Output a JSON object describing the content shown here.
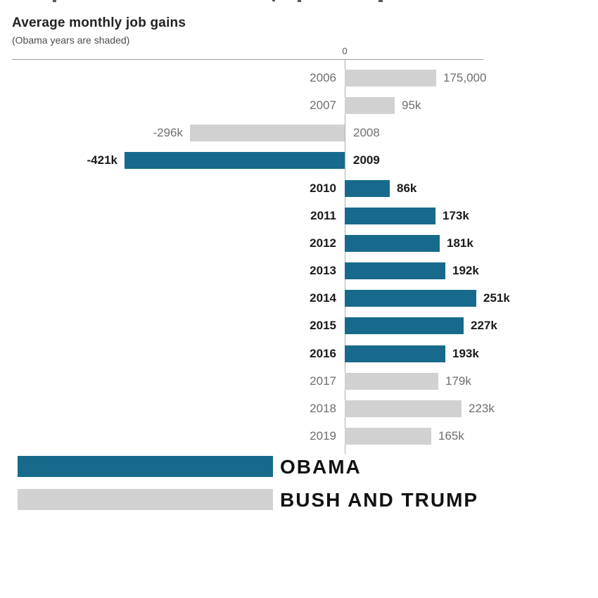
{
  "colors": {
    "obama": "#176a8c",
    "bush_trump": "#d1d1d1",
    "obama_text": "#1a1a1a",
    "other_text": "#6e6e6e"
  },
  "chart_data": {
    "type": "bar",
    "orientation": "horizontal",
    "title": "Average monthly job gains",
    "subtitle": "(Obama years are shaded)",
    "axis": {
      "zero_label": "0",
      "unit_hint": "k = thousands",
      "xlim_k": [
        -450,
        300
      ],
      "grid": "zero-line-only"
    },
    "categories": [
      "2006",
      "2007",
      "2008",
      "2009",
      "2010",
      "2011",
      "2012",
      "2013",
      "2014",
      "2015",
      "2016",
      "2017",
      "2018",
      "2019"
    ],
    "values_k": [
      175,
      95,
      -296,
      -421,
      86,
      173,
      181,
      192,
      251,
      227,
      193,
      179,
      223,
      165
    ],
    "rows": [
      {
        "year": "2006",
        "value": 175,
        "value_label": "175,000",
        "group": "bush_trump"
      },
      {
        "year": "2007",
        "value": 95,
        "value_label": "95k",
        "group": "bush_trump"
      },
      {
        "year": "2008",
        "value": -296,
        "value_label": "-296k",
        "group": "bush_trump"
      },
      {
        "year": "2009",
        "value": -421,
        "value_label": "-421k",
        "group": "obama"
      },
      {
        "year": "2010",
        "value": 86,
        "value_label": "86k",
        "group": "obama"
      },
      {
        "year": "2011",
        "value": 173,
        "value_label": "173k",
        "group": "obama"
      },
      {
        "year": "2012",
        "value": 181,
        "value_label": "181k",
        "group": "obama"
      },
      {
        "year": "2013",
        "value": 192,
        "value_label": "192k",
        "group": "obama"
      },
      {
        "year": "2014",
        "value": 251,
        "value_label": "251k",
        "group": "obama"
      },
      {
        "year": "2015",
        "value": 227,
        "value_label": "227k",
        "group": "obama"
      },
      {
        "year": "2016",
        "value": 193,
        "value_label": "193k",
        "group": "obama"
      },
      {
        "year": "2017",
        "value": 179,
        "value_label": "179k",
        "group": "bush_trump"
      },
      {
        "year": "2018",
        "value": 223,
        "value_label": "223k",
        "group": "bush_trump"
      },
      {
        "year": "2019",
        "value": 165,
        "value_label": "165k",
        "group": "bush_trump"
      }
    ],
    "legend": [
      {
        "label": "OBAMA",
        "group": "obama",
        "color": "#176a8c"
      },
      {
        "label": "BUSH AND TRUMP",
        "group": "bush_trump",
        "color": "#d1d1d1"
      }
    ],
    "legend_position": "bottom-left"
  }
}
